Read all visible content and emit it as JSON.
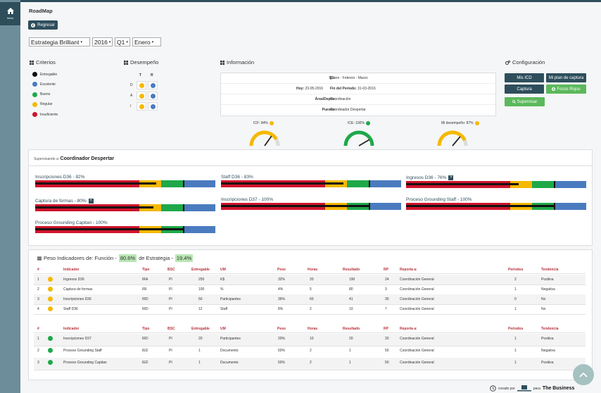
{
  "sidebar": {
    "home_label": "Inicio"
  },
  "header": {
    "title": "RoadMap",
    "back_label": "Regresar"
  },
  "filters": {
    "strategy": "Estrategia Brilliant",
    "year": "2016",
    "quarter": "Q1",
    "month": "Enero"
  },
  "criterios": {
    "title": "Criterios",
    "items": [
      {
        "label": "Entregable",
        "color": "#111111"
      },
      {
        "label": "Excelente",
        "color": "#4a7bbf"
      },
      {
        "label": "Bueno",
        "color": "#1ea84a"
      },
      {
        "label": "Regular",
        "color": "#f5b800"
      },
      {
        "label": "Insuficiente",
        "color": "#d0142c"
      }
    ]
  },
  "desempeno": {
    "title": "Desempeño",
    "cols": [
      "T",
      "R"
    ],
    "rows": [
      {
        "label": "D",
        "t": "#f5b800",
        "r": "#4a7bbf"
      },
      {
        "label": "A",
        "t": "#f5b800",
        "r": "#4a7bbf"
      },
      {
        "label": "I",
        "t": "#f5b800",
        "r": "#4a7bbf"
      }
    ]
  },
  "informacion": {
    "title": "Información",
    "q_label": "Q1:",
    "q_value": "Enero - Febrero - Marzo",
    "hoy_label": "Hoy:",
    "hoy_value": "23-05-2016",
    "fin_label": "Fin del Periodo:",
    "fin_value": "31-03-2016",
    "area_label": "Área/Depto:",
    "area_value": "Coordinación",
    "puesto_label": "Puesto:",
    "puesto_value": "Coordinador Despertar"
  },
  "configuracion": {
    "title": "Configuración",
    "mis_icd": "Mis ICD",
    "mi_plan": "Mi plan de captura",
    "captura": "Captura",
    "focos_rojos": "Focos Rojos",
    "supervisar": "Supervisar"
  },
  "gauges": [
    {
      "label": "ICF: 84%",
      "value": 84,
      "color": "#f5b800"
    },
    {
      "label": "ICE: 100%",
      "value": 100,
      "color": "#1ea84a"
    },
    {
      "label": "Mi desempeño: 87%",
      "value": 87,
      "color": "#f5b800"
    }
  ],
  "supervision": {
    "prefix": "Supervisando a:",
    "name": "Coordinador Despertar",
    "kpis": [
      {
        "label": "Inscripciones D36 - 82%",
        "value": 82,
        "plus": false
      },
      {
        "label": "Staff D36 - 83%",
        "value": 83,
        "plus": false
      },
      {
        "label": "Ingresos D36 - 76%",
        "value": 76,
        "plus": true
      },
      {
        "label": "Captura de formas - 80%",
        "value": 80,
        "plus": true
      },
      {
        "label": "Inscripciones D37 - 100%",
        "value": 100,
        "plus": false
      },
      {
        "label": "Proceso Grounding Staff - 100%",
        "value": 100,
        "plus": false
      },
      {
        "label": "Proceso Grounding Capitan - 100%",
        "value": 100,
        "plus": false
      }
    ]
  },
  "pesos": {
    "prefix": "Peso Indicadores de: Función -",
    "funcion": "80.6%",
    "middle": "de Estrategia -",
    "estrategia": "19.4%",
    "columns": [
      "#",
      "Indicador",
      "Tipo",
      "BSC",
      "Entregable",
      "UM",
      "Peso",
      "Horas",
      "Resultado",
      "RP",
      "Reporta a:",
      "Periodos",
      "Tendencia"
    ],
    "table1": [
      {
        "n": "1",
        "color": "#f5b800",
        "indicador": "Ingresos D36",
        "tipo": "IRA",
        "bsc": "PI",
        "entregable": "250",
        "um": "K$",
        "peso": "32%",
        "horas": "20",
        "resultado": "190",
        "rp": "24",
        "reporta": "Coordinación General",
        "periodos": "2",
        "tendencia": "Positiva"
      },
      {
        "n": "2",
        "color": "#f5b800",
        "indicador": "Captura de formas",
        "tipo": "IRI",
        "bsc": "PI",
        "entregable": "100",
        "um": "%",
        "peso": "4%",
        "horas": "5",
        "resultado": "80",
        "rp": "3",
        "reporta": "Coordinación General",
        "periodos": "1",
        "tendencia": "Negativa"
      },
      {
        "n": "3",
        "color": "#f5b800",
        "indicador": "Inscripciones D36",
        "tipo": "IRD",
        "bsc": "PI",
        "entregable": "50",
        "um": "Participantes",
        "peso": "36%",
        "horas": "60",
        "resultado": "41",
        "rp": "30",
        "reporta": "Coordinación General",
        "periodos": "0",
        "tendencia": "No"
      },
      {
        "n": "4",
        "color": "#f5b800",
        "indicador": "Staff D36",
        "tipo": "IRD",
        "bsc": "PI",
        "entregable": "12",
        "um": "Staff",
        "peso": "8%",
        "horas": "2",
        "resultado": "10",
        "rp": "7",
        "reporta": "Coordinación General",
        "periodos": "1",
        "tendencia": "No"
      }
    ],
    "table2": [
      {
        "n": "1",
        "color": "#1ea84a",
        "indicador": "Inscripciones D37",
        "tipo": "IRD",
        "bsc": "PI",
        "entregable": "20",
        "um": "Participantes",
        "peso": "20%",
        "horas": "10",
        "resultado": "20",
        "rp": "20",
        "reporta": "Coordinación General",
        "periodos": "1",
        "tendencia": "Positiva"
      },
      {
        "n": "2",
        "color": "#1ea84a",
        "indicador": "Proceso Grounding Staff",
        "tipo": "IED",
        "bsc": "PI",
        "entregable": "1",
        "um": "Documento",
        "peso": "50%",
        "horas": "2",
        "resultado": "1",
        "rp": "50",
        "reporta": "Coordinación General",
        "periodos": "1",
        "tendencia": "Negativa"
      },
      {
        "n": "3",
        "color": "#1ea84a",
        "indicador": "Proceso Grounding Capitan",
        "tipo": "IED",
        "bsc": "PI",
        "entregable": "1",
        "um": "Documento",
        "peso": "50%",
        "horas": "2",
        "resultado": "1",
        "rp": "50",
        "reporta": "Coordinación General",
        "periodos": "1",
        "tendencia": "Positiva"
      }
    ]
  },
  "footer": {
    "created_by": "creado por",
    "for": "para",
    "brand": "The Business"
  }
}
